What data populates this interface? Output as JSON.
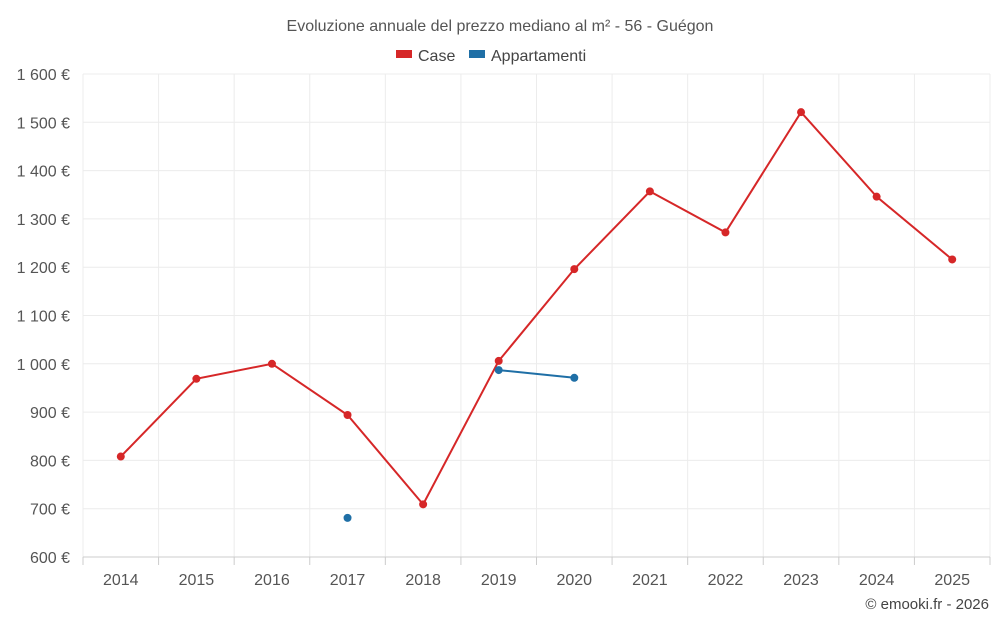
{
  "chart_data": {
    "type": "line",
    "title": "Evoluzione annuale del prezzo mediano al m² - 56 - Guégon",
    "categories": [
      "2014",
      "2015",
      "2016",
      "2017",
      "2018",
      "2019",
      "2020",
      "2021",
      "2022",
      "2023",
      "2024",
      "2025"
    ],
    "yticks": [
      "600 €",
      "700 €",
      "800 €",
      "900 €",
      "1 000 €",
      "1 100 €",
      "1 200 €",
      "1 300 €",
      "1 400 €",
      "1 500 €",
      "1 600 €"
    ],
    "ylim": [
      600,
      1600
    ],
    "grid": true,
    "legend_position": "top-center",
    "series": [
      {
        "name": "Case",
        "color": "#d62728",
        "values": [
          808,
          969,
          1000,
          894,
          709,
          1006,
          1196,
          1357,
          1272,
          1521,
          1346,
          1216
        ]
      },
      {
        "name": "Appartamenti",
        "color": "#1f6fa6",
        "values": [
          null,
          null,
          null,
          681,
          null,
          987,
          971,
          null,
          null,
          null,
          null,
          null
        ]
      }
    ]
  },
  "credit": "© emooki.fr - 2026"
}
